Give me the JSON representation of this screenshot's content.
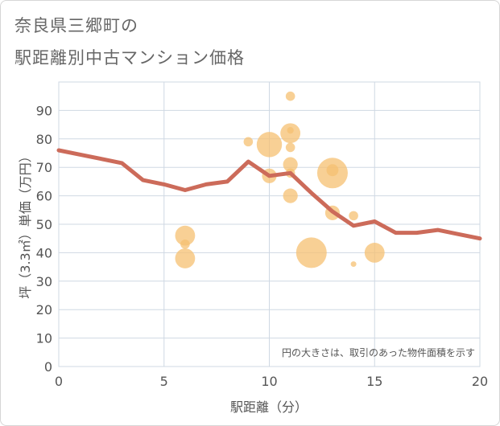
{
  "title_line1": "奈良県三郷町の",
  "title_line2": "駅距離別中古マンション価格",
  "chart_data": {
    "type": "scatter",
    "title": "奈良県三郷町の 駅距離別中古マンション価格",
    "xlabel": "駅距離（分）",
    "ylabel": "坪（3.3㎡）単価（万円）",
    "xlim": [
      0,
      20
    ],
    "ylim": [
      0,
      100
    ],
    "xticks": [
      0,
      5,
      10,
      15,
      20
    ],
    "yticks": [
      0,
      10,
      20,
      30,
      40,
      50,
      60,
      70,
      80,
      90
    ],
    "grid": true,
    "annotation": "円の大きさは、取引のあった物件面積を示す",
    "bubble_color": "#f5c071",
    "line_color": "#cc6b5a",
    "bubbles": [
      {
        "x": 6,
        "y": 46,
        "size": 3
      },
      {
        "x": 6,
        "y": 43,
        "size": 1
      },
      {
        "x": 6,
        "y": 38,
        "size": 3
      },
      {
        "x": 9,
        "y": 79,
        "size": 1
      },
      {
        "x": 10,
        "y": 78,
        "size": 4
      },
      {
        "x": 10,
        "y": 67,
        "size": 2
      },
      {
        "x": 11,
        "y": 95,
        "size": 1
      },
      {
        "x": 11,
        "y": 82,
        "size": 3
      },
      {
        "x": 11,
        "y": 83,
        "size": 0.5
      },
      {
        "x": 11,
        "y": 77,
        "size": 1
      },
      {
        "x": 11,
        "y": 71,
        "size": 2
      },
      {
        "x": 11,
        "y": 68,
        "size": 1
      },
      {
        "x": 11,
        "y": 60,
        "size": 2
      },
      {
        "x": 12,
        "y": 40,
        "size": 5
      },
      {
        "x": 13,
        "y": 68,
        "size": 5
      },
      {
        "x": 13,
        "y": 69,
        "size": 1.5
      },
      {
        "x": 13,
        "y": 54,
        "size": 2
      },
      {
        "x": 14,
        "y": 53,
        "size": 1
      },
      {
        "x": 14,
        "y": 36,
        "size": 0.3
      },
      {
        "x": 15,
        "y": 40,
        "size": 3
      }
    ],
    "line": {
      "x": [
        0,
        1,
        2,
        3,
        4,
        5,
        6,
        7,
        8,
        9,
        10,
        11,
        12,
        13,
        14,
        15,
        16,
        17,
        18,
        19,
        20
      ],
      "y": [
        76,
        74.5,
        73,
        71.5,
        65.5,
        64,
        62,
        64,
        65,
        72,
        67,
        68,
        61,
        54.5,
        49.5,
        51,
        47,
        47,
        48,
        46.5,
        45
      ]
    }
  }
}
